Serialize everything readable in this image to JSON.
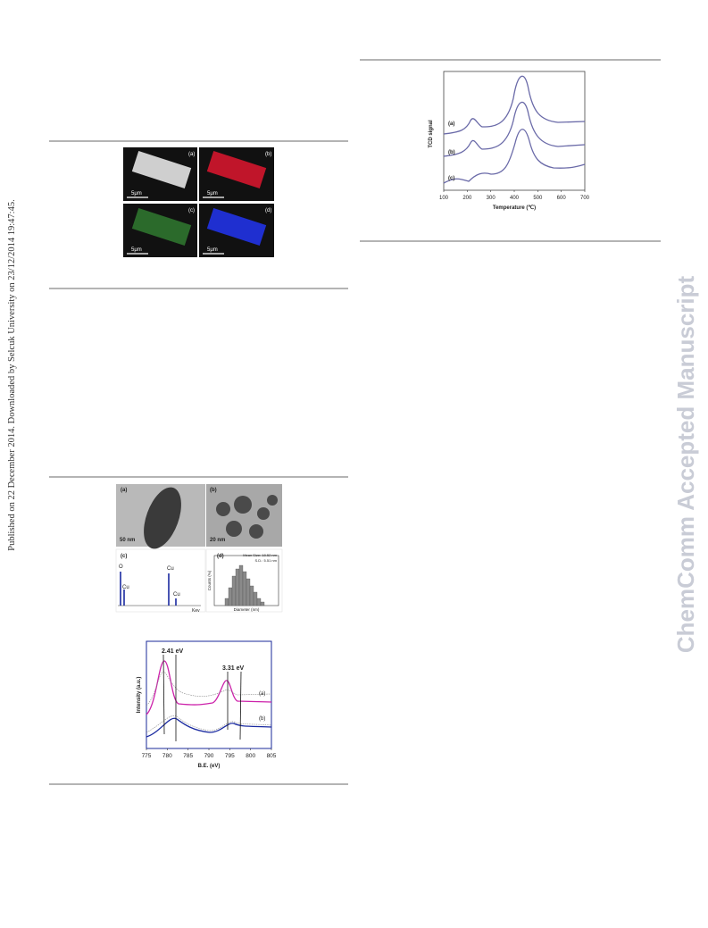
{
  "side_note": "Published on 22 December 2014. Downloaded by Selcuk University on 23/12/2014 19:47:45.",
  "watermark": "ChemComm Accepted Manuscript",
  "figures": {
    "tpr": {
      "y_label": "TCD signal",
      "curve_labels": [
        "(a)",
        "(b)",
        "(c)"
      ],
      "x_ticks": [
        "100",
        "200",
        "300",
        "400",
        "500",
        "600",
        "700"
      ],
      "x_label": "Temperature (℃)"
    },
    "mapping": {
      "panel_labels": [
        "(a)",
        "(b)",
        "(c)",
        "(d)"
      ],
      "scale_bars": [
        "5μm",
        "5μm",
        "5μm",
        "5μm"
      ]
    },
    "tem": {
      "panel_labels": [
        "(a)",
        "(b)",
        "(c)",
        "(d)"
      ],
      "scale_bars": [
        "50 nm",
        "20 nm"
      ],
      "eds_peaks": [
        "O",
        "Cu",
        "Cu",
        "Cu"
      ],
      "eds_x_label": "Kev",
      "hist_y_label": "Counts (%)",
      "hist_x_label": "Diameter (nm)",
      "hist_stats": [
        "Mean Size: 18.52 nm",
        "S.D.: 5.51 nm"
      ]
    },
    "xps": {
      "annotations": [
        "2.41 eV",
        "3.31 eV"
      ],
      "curve_labels": [
        "(a)",
        "(b)"
      ],
      "y_label": "Intensity (a.u.)",
      "x_ticks": [
        "775",
        "780",
        "785",
        "790",
        "795",
        "800",
        "805"
      ],
      "x_label": "B.E. (eV)"
    }
  }
}
